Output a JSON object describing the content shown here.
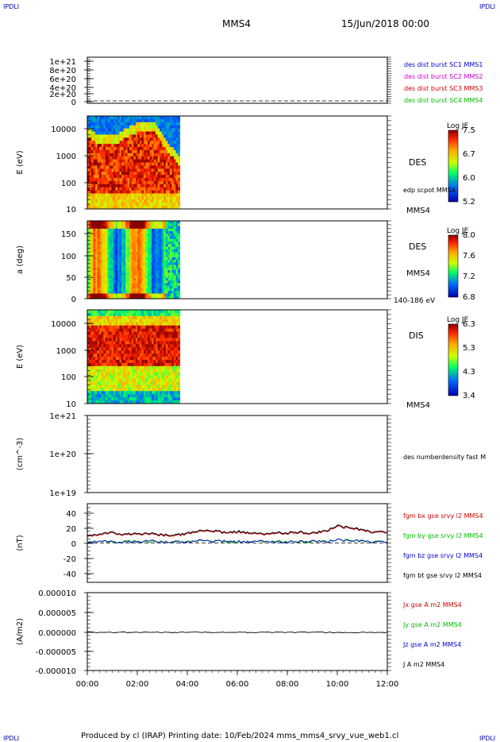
{
  "header": {
    "left_logo": "IPDLI",
    "right_logo": "IPDLI",
    "title": "MMS4",
    "datetime": "15/Jun/2018 00:00"
  },
  "footer": {
    "credit": "Produced by cl (IRAP)   Printing date: 10/Feb/2024   mms_mms4_srvy_vue_web1.cl",
    "left_logo": "IPDLI",
    "right_logo": "IPDLI"
  },
  "colors": {
    "mms1": "#0000cc",
    "mms2": "#cc00cc",
    "mms3": "#cc0000",
    "mms4": "#00bb00",
    "bx": "#cc0000",
    "by": "#00bb00",
    "bz": "#0000cc",
    "bt": "#000000"
  },
  "chart_data": [
    {
      "type": "line",
      "panel": "dist-counts",
      "yticks": [
        "1e+21",
        "8e+20",
        "6e+20",
        "4e+20",
        "2e+20",
        "0"
      ],
      "ylim": [
        0,
        1.1e+21
      ],
      "legend": [
        {
          "label": "des dist burst SC1 MMS1",
          "color": "#0000cc"
        },
        {
          "label": "des dist burst SC2 MMS2",
          "color": "#cc00cc"
        },
        {
          "label": "des dist burst SC3 MMS3",
          "color": "#cc0000"
        },
        {
          "label": "des dist burst SC4 MMS4",
          "color": "#00bb00"
        }
      ],
      "series": [
        {
          "values": [
            0,
            0
          ]
        }
      ]
    },
    {
      "type": "heatmap",
      "panel": "des-energy",
      "ylabel": "E (eV)",
      "yticks": [
        "10000",
        "1000",
        "100",
        "10"
      ],
      "ylim": [
        10,
        25000
      ],
      "label": "DES",
      "sub_label": "edp scpot MMS4",
      "spacecraft": "MMS4",
      "colorbar": {
        "title": "Log JE",
        "ticks": [
          "7.5",
          "6.7",
          "6.0",
          "5.2"
        ],
        "range": [
          5.2,
          7.6
        ]
      },
      "data_end_hours": 3.7
    },
    {
      "type": "heatmap",
      "panel": "des-pitch-angle",
      "ylabel": "a (deg)",
      "yticks": [
        "150",
        "100",
        "50",
        "0"
      ],
      "ylim": [
        0,
        180
      ],
      "label": "DES",
      "spacecraft": "MMS4",
      "energy_range": "140-186 eV",
      "colorbar": {
        "title": "Log JE",
        "ticks": [
          "8.0",
          "7.6",
          "7.2",
          "6.8"
        ],
        "range": [
          6.8,
          8.1
        ]
      },
      "data_end_hours": 3.7
    },
    {
      "type": "heatmap",
      "panel": "dis-energy",
      "ylabel": "E (eV)",
      "yticks": [
        "10000",
        "1000",
        "100",
        "10"
      ],
      "ylim": [
        10,
        25000
      ],
      "label": "DIS",
      "spacecraft": "MMS4",
      "colorbar": {
        "title": "Log JE",
        "ticks": [
          "6.3",
          "5.3",
          "4.3",
          "3.4"
        ],
        "range": [
          3.4,
          6.5
        ]
      },
      "data_end_hours": 3.7
    },
    {
      "type": "line",
      "panel": "density",
      "ylabel": "(cm^-3)",
      "yticks": [
        "1e+21",
        "1e+20",
        "1e+19"
      ],
      "ylim": [
        1e+19,
        1e+21
      ],
      "legend": [
        {
          "label": "des numberdensity fast M",
          "color": "#000000"
        }
      ],
      "series": []
    },
    {
      "type": "line",
      "panel": "magnetic-field",
      "ylabel": "(nT)",
      "yticks": [
        "40",
        "20",
        "0",
        "-20",
        "-40"
      ],
      "ylim": [
        -50,
        50
      ],
      "legend": [
        {
          "label": "fgm bx gse srvy l2 MMS4",
          "color": "#cc0000"
        },
        {
          "label": "fgm by gse srvy l2 MMS4",
          "color": "#00bb00"
        },
        {
          "label": "fgm bz gse srvy l2 MMS4",
          "color": "#0000cc"
        },
        {
          "label": "fgm bt gse srvy l2 MMS4",
          "color": "#000000"
        }
      ],
      "x": [
        0,
        0.5,
        1,
        1.5,
        2,
        2.5,
        3,
        3.5,
        4,
        4.5,
        5,
        5.5,
        6,
        6.5,
        7,
        7.5,
        8,
        8.5,
        9,
        9.5,
        10,
        10.5,
        11,
        11.5,
        12
      ],
      "series": [
        {
          "key": "bx",
          "values": [
            9,
            11,
            13,
            10,
            12,
            11,
            10,
            9,
            12,
            14,
            15,
            13,
            14,
            12,
            11,
            13,
            12,
            13,
            12,
            14,
            21,
            18,
            16,
            13,
            14
          ]
        },
        {
          "key": "by",
          "values": [
            2,
            3,
            1,
            2,
            3,
            1,
            2,
            1,
            2,
            2,
            3,
            2,
            1,
            2,
            2,
            3,
            2,
            1,
            2,
            2,
            4,
            3,
            2,
            2,
            2
          ]
        },
        {
          "key": "bz",
          "values": [
            1,
            3,
            2,
            1,
            2,
            3,
            1,
            2,
            1,
            3,
            2,
            3,
            2,
            1,
            3,
            2,
            1,
            2,
            3,
            1,
            4,
            2,
            3,
            1,
            2
          ]
        },
        {
          "key": "bt",
          "values": [
            10,
            12,
            14,
            11,
            13,
            12,
            11,
            10,
            13,
            15,
            16,
            14,
            15,
            13,
            12,
            14,
            13,
            14,
            13,
            15,
            22,
            19,
            17,
            14,
            15
          ]
        }
      ]
    },
    {
      "type": "line",
      "panel": "current-density",
      "ylabel": "(A/m2)",
      "yticks": [
        "0.000010",
        "0.000005",
        "0.000000",
        "-0.000005",
        "-0.000010"
      ],
      "ylim": [
        -1e-05,
        1e-05
      ],
      "legend": [
        {
          "label": "Jx gse A m2 MMS4",
          "color": "#cc0000"
        },
        {
          "label": "Jy gse A m2 MMS4",
          "color": "#00bb00"
        },
        {
          "label": "Jz gse A m2 MMS4",
          "color": "#0000cc"
        },
        {
          "label": "J A m2 MMS4",
          "color": "#000000"
        }
      ],
      "series": [
        {
          "key": "j",
          "values": [
            0,
            0
          ]
        }
      ]
    }
  ],
  "xaxis": {
    "ticks": [
      "00:00",
      "02:00",
      "04:00",
      "06:00",
      "08:00",
      "10:00",
      "12:00"
    ],
    "range_hours": [
      0,
      12
    ]
  }
}
